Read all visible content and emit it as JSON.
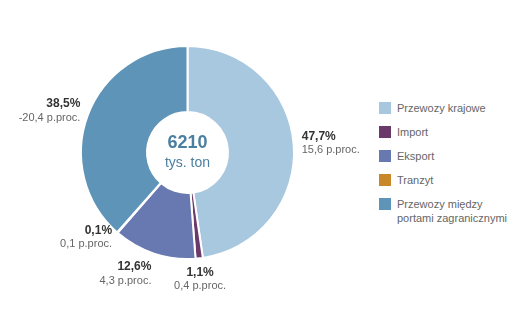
{
  "chart_data": {
    "type": "doughnut",
    "categories": [
      "Przewozy krajowe",
      "Import",
      "Eksport",
      "Tranzyt",
      "Przewozy między\nportami zagranicznymi"
    ],
    "values": [
      47.7,
      1.1,
      12.6,
      0.1,
      38.5
    ],
    "value_labels": [
      "47,7%",
      "1,1%",
      "12,6%",
      "0,1%",
      "38,5%"
    ],
    "colors": [
      "#a8c8e0",
      "#6b3a6b",
      "#6878b0",
      "#c8882a",
      "#5e94b8"
    ],
    "data_labels": true,
    "legend": "right",
    "annotations": [
      {
        "text": "6210",
        "color": "#4a7fa0"
      },
      {
        "text": "tys. ton",
        "color": "#4a7fa0"
      },
      {
        "text": "15,6 p.proc.",
        "category": "Przewozy krajowe"
      },
      {
        "text": "0,4 p.proc.",
        "category": "Import"
      },
      {
        "text": "4,3 p.proc.",
        "category": "Eksport"
      },
      {
        "text": "0,1 p.proc.",
        "category": "Tranzyt"
      },
      {
        "text": "-20,4 p.proc.",
        "category": "Przewozy między\nportami zagranicznymi"
      }
    ]
  }
}
